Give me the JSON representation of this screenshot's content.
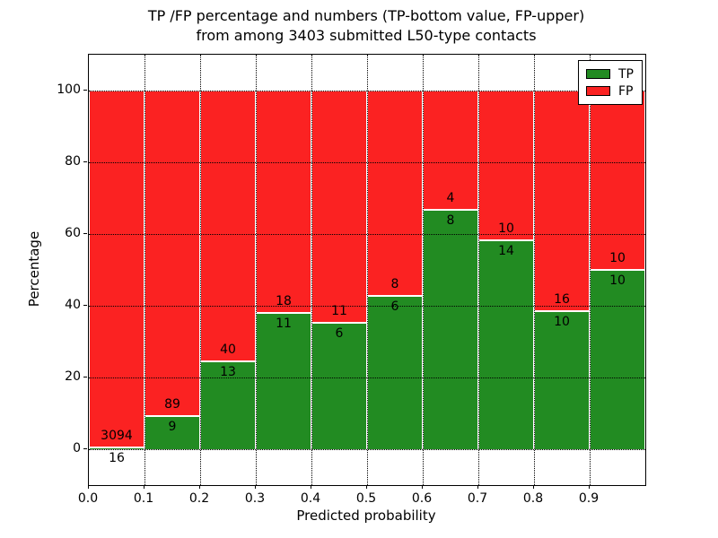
{
  "figure_title_line1": "TP /FP percentage and numbers (TP-bottom value, FP-upper)",
  "figure_title_line2": "from among 3403 submitted L50-type contacts",
  "chart_data": {
    "type": "bar",
    "stacked": true,
    "normalized_to_percent": true,
    "title": "TP /FP percentage and numbers (TP-bottom value, FP-upper) from among 3403 submitted L50-type contacts",
    "xlabel": "Predicted probability",
    "ylabel": "Percentage",
    "total_contacts": 3403,
    "xlim": [
      0.0,
      1.0
    ],
    "ylim": [
      -10,
      110
    ],
    "bin_width": 0.1,
    "x_tick_labels": [
      "0.0",
      "0.1",
      "0.2",
      "0.3",
      "0.4",
      "0.5",
      "0.6",
      "0.7",
      "0.8",
      "0.9"
    ],
    "y_tick_labels": [
      "0",
      "20",
      "40",
      "60",
      "80",
      "100"
    ],
    "y_tick_values": [
      0,
      20,
      40,
      60,
      80,
      100
    ],
    "x_grid_values": [
      0.1,
      0.2,
      0.3,
      0.4,
      0.5,
      0.6,
      0.7,
      0.8,
      0.9
    ],
    "grid": {
      "style": "dotted",
      "color": "#000000",
      "on_top_of_bars": true
    },
    "bar_edge_color": "#ffffff",
    "series": [
      {
        "name": "TP",
        "color": "#228b22",
        "counts": [
          16,
          9,
          13,
          11,
          6,
          6,
          8,
          14,
          10,
          10
        ]
      },
      {
        "name": "FP",
        "color": "#fb2222",
        "counts": [
          3094,
          89,
          40,
          18,
          11,
          8,
          4,
          10,
          16,
          10
        ]
      }
    ],
    "tp_percentages": [
      0.51,
      9.18,
      24.53,
      37.93,
      35.29,
      42.86,
      66.67,
      58.33,
      38.46,
      50.0
    ],
    "legend": {
      "position": "upper right",
      "entries": [
        {
          "label": "TP",
          "color": "#228b22"
        },
        {
          "label": "FP",
          "color": "#fb2222"
        }
      ]
    }
  }
}
